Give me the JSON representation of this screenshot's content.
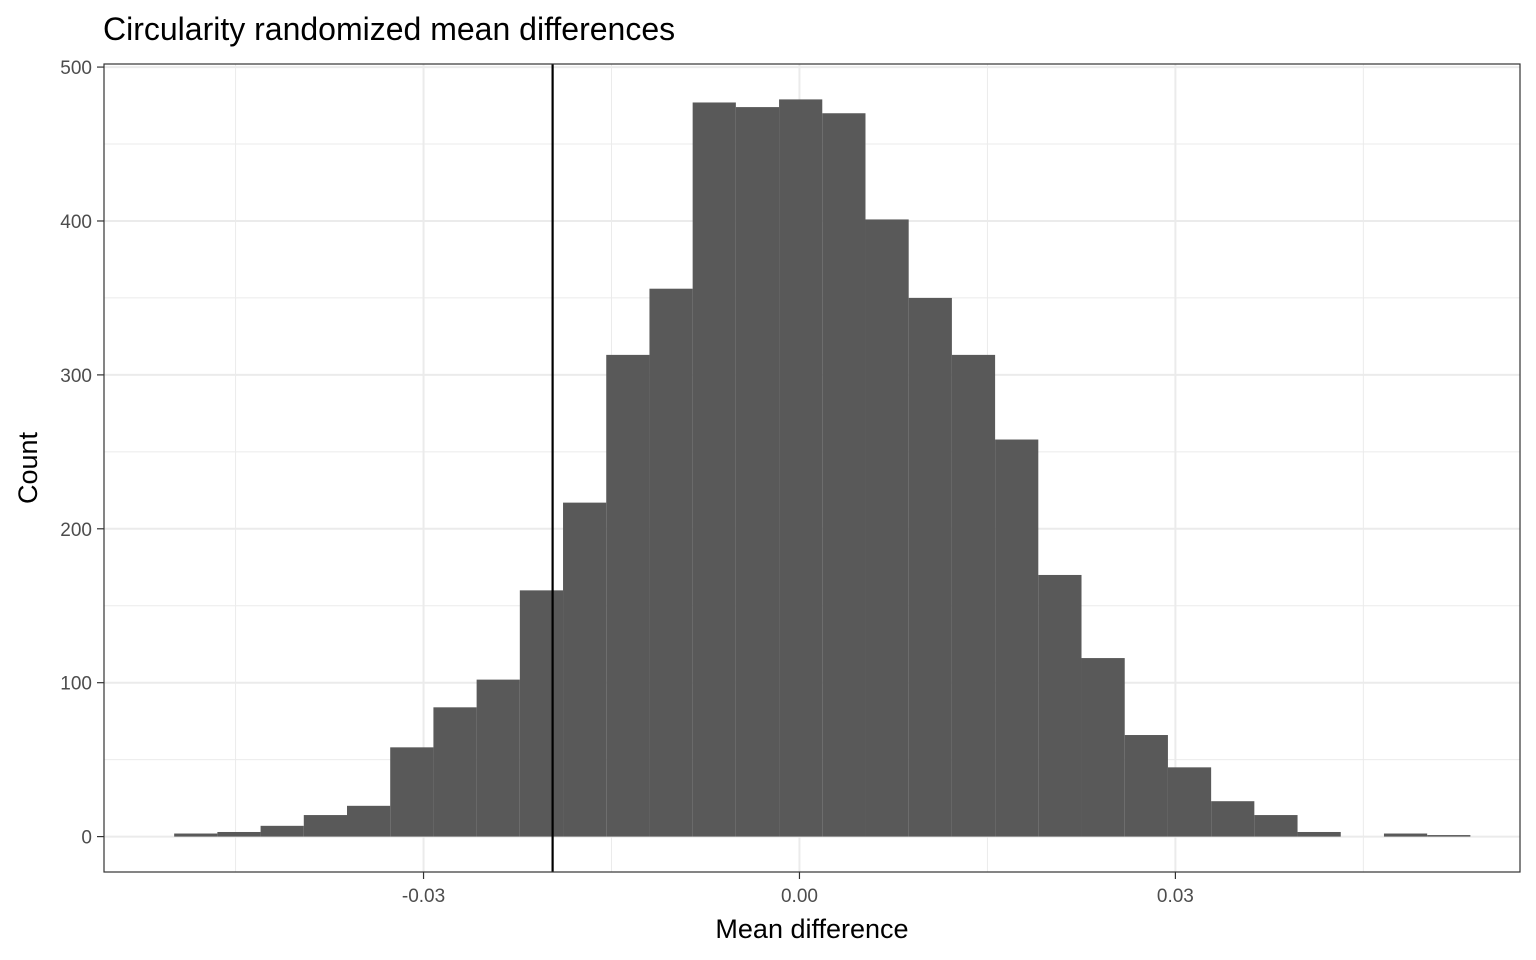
{
  "chart_data": {
    "type": "bar",
    "subtype": "histogram",
    "title": "Circularity randomized mean differences",
    "xlabel": "Mean difference",
    "ylabel": "Count",
    "xlim": [
      -0.0555,
      0.0575
    ],
    "ylim": [
      -23,
      502
    ],
    "x_ticks": [
      -0.03,
      0.0,
      0.03
    ],
    "x_tick_labels": [
      "-0.03",
      "0.00",
      "0.03"
    ],
    "y_ticks": [
      0,
      100,
      200,
      300,
      400,
      500
    ],
    "y_tick_labels": [
      "0",
      "100",
      "200",
      "300",
      "400",
      "500"
    ],
    "bin_width": 0.003448,
    "bin_start": -0.0499,
    "values": [
      2,
      3,
      7,
      14,
      20,
      58,
      84,
      102,
      160,
      217,
      313,
      356,
      477,
      474,
      479,
      470,
      401,
      350,
      313,
      258,
      170,
      116,
      66,
      45,
      23,
      14,
      3,
      0,
      2,
      1
    ],
    "vline_x": -0.0197,
    "grid": true,
    "legend": "none",
    "bar_color": "#595959",
    "vline_color": "#000000",
    "grid_color": "#ebebeb",
    "panel_border_color": "#333333"
  }
}
